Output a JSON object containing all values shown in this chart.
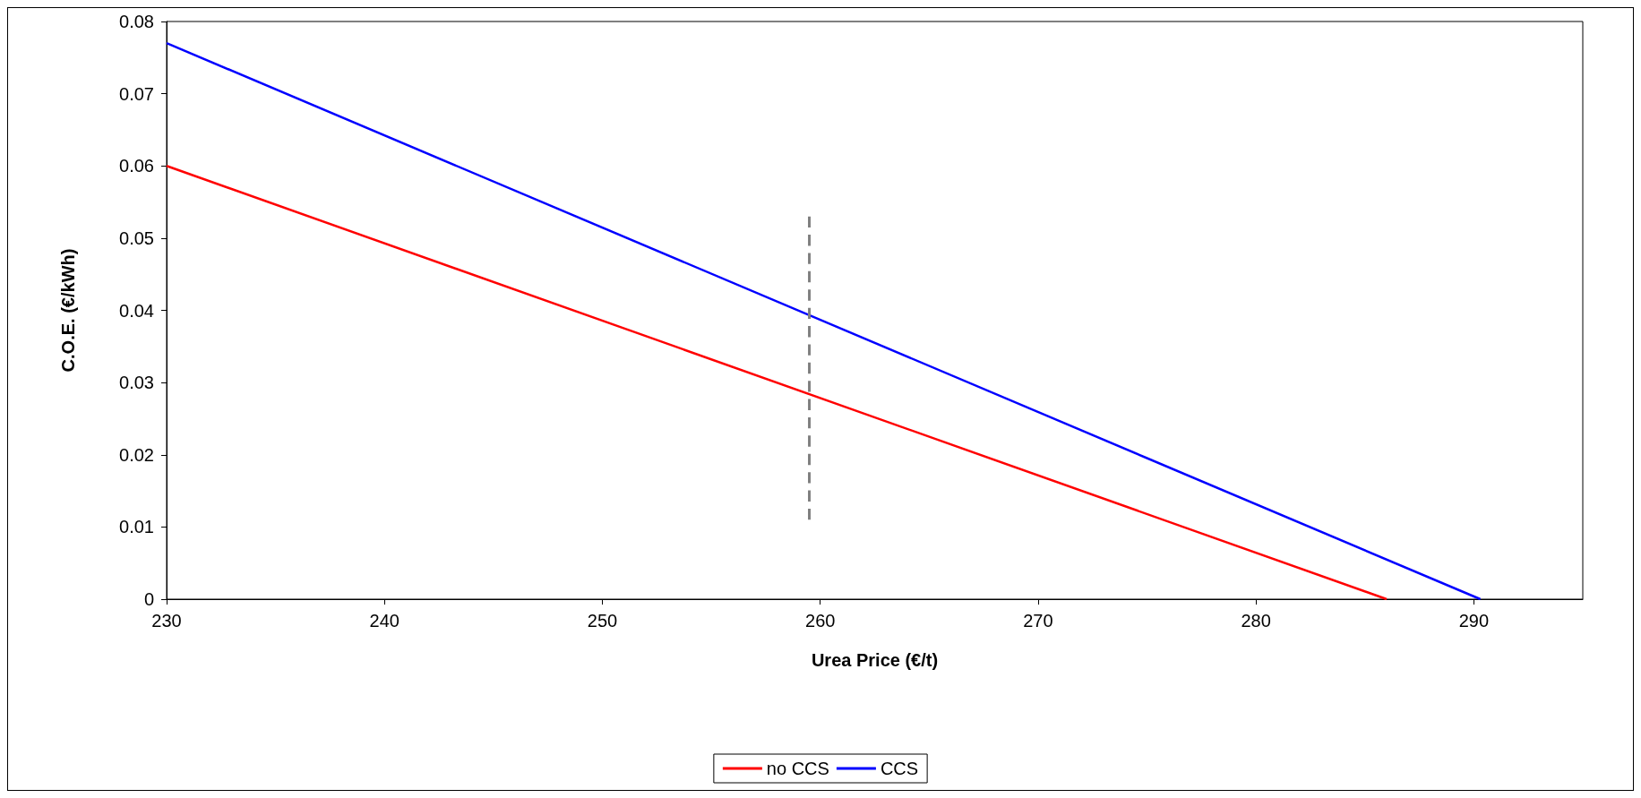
{
  "chart_data": {
    "type": "line",
    "xlabel": "Urea Price (€/t)",
    "ylabel": "C.O.E. (€/kWh)",
    "xlim": [
      230,
      295
    ],
    "xticks": [
      230,
      240,
      250,
      260,
      270,
      280,
      290
    ],
    "ylim": [
      0,
      0.08
    ],
    "yticks": [
      0,
      0.01,
      0.02,
      0.03,
      0.04,
      0.05,
      0.06,
      0.07,
      0.08
    ],
    "grid": false,
    "legend": "bottom",
    "line_style": "solid",
    "series": [
      {
        "name": "no CCS",
        "color": "#ff0000",
        "x": [
          230,
          286
        ],
        "values": [
          0.06,
          0
        ]
      },
      {
        "name": "CCS",
        "color": "#0000ff",
        "x": [
          230,
          290.3
        ],
        "values": [
          0.077,
          0
        ]
      },
      {
        "color": "#808080",
        "line_style": "dashed",
        "x": [
          259.5,
          259.5
        ],
        "values": [
          0.011,
          0.053
        ]
      }
    ]
  }
}
